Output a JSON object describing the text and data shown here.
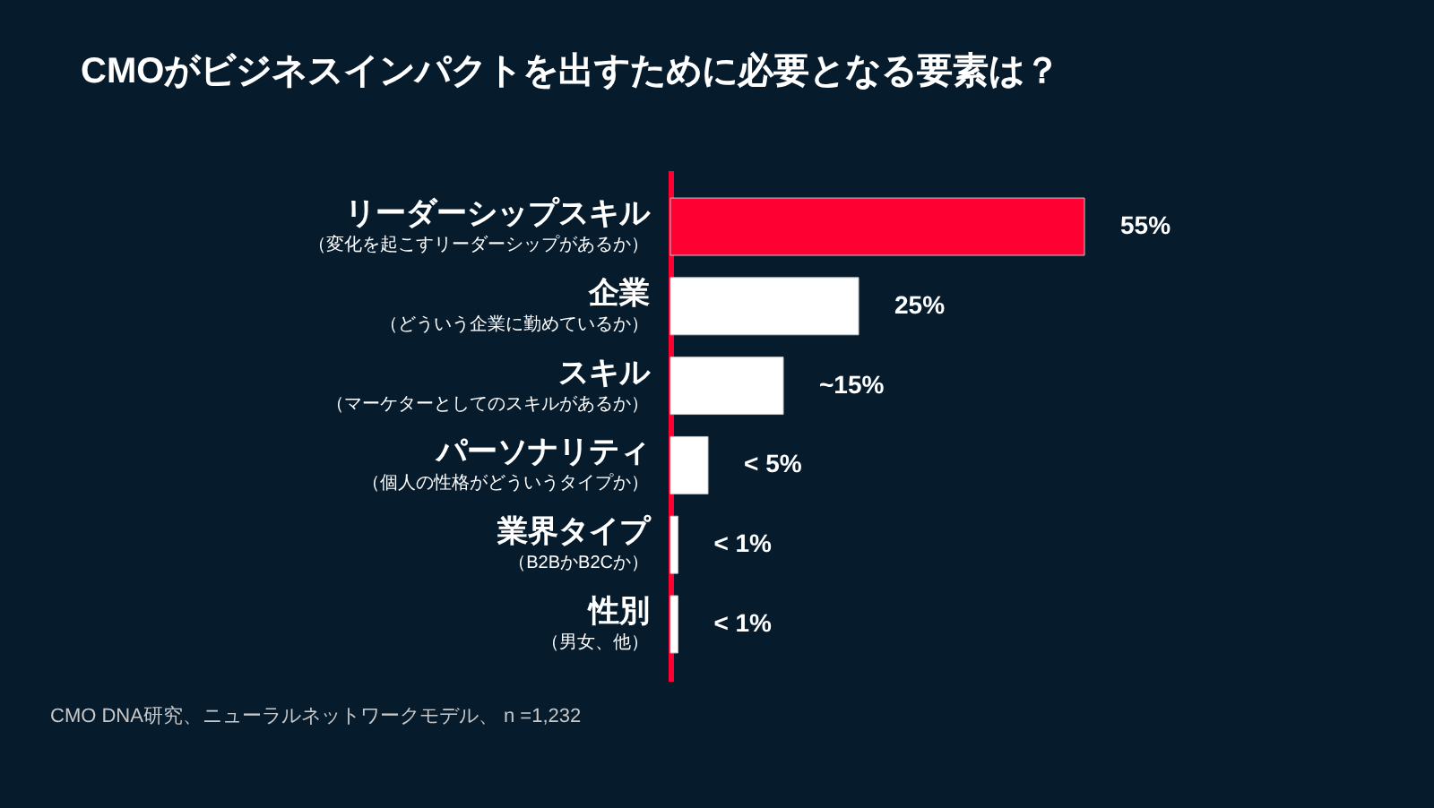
{
  "chart_data": {
    "type": "bar",
    "orientation": "horizontal",
    "title": "CMOがビジネスインパクトを出すために必要となる要素は？",
    "categories": [
      "リーダーシップスキル",
      "企業",
      "スキル",
      "パーソナリティ",
      "業界タイプ",
      "性別"
    ],
    "values": [
      55,
      25,
      15,
      5,
      1,
      1
    ],
    "value_labels": [
      "55%",
      "25%",
      "~15%",
      "< 5%",
      "< 1%",
      "< 1%"
    ],
    "colors": [
      "#ff0033",
      "#ffffff",
      "#ffffff",
      "#ffffff",
      "#ffffff",
      "#ffffff"
    ],
    "annotations": [
      "（変化を起こすリーダーシップがあるか）",
      "（どういう企業に勤めているか）",
      "（マーケターとしてのスキルがあるか）",
      "（個人の性格がどういうタイプか）",
      "（B2BかB2Cか）",
      "（男女、他）",
      "CMO DNA研究、ニューラルネットワークモデル、 n =1,232"
    ]
  }
}
